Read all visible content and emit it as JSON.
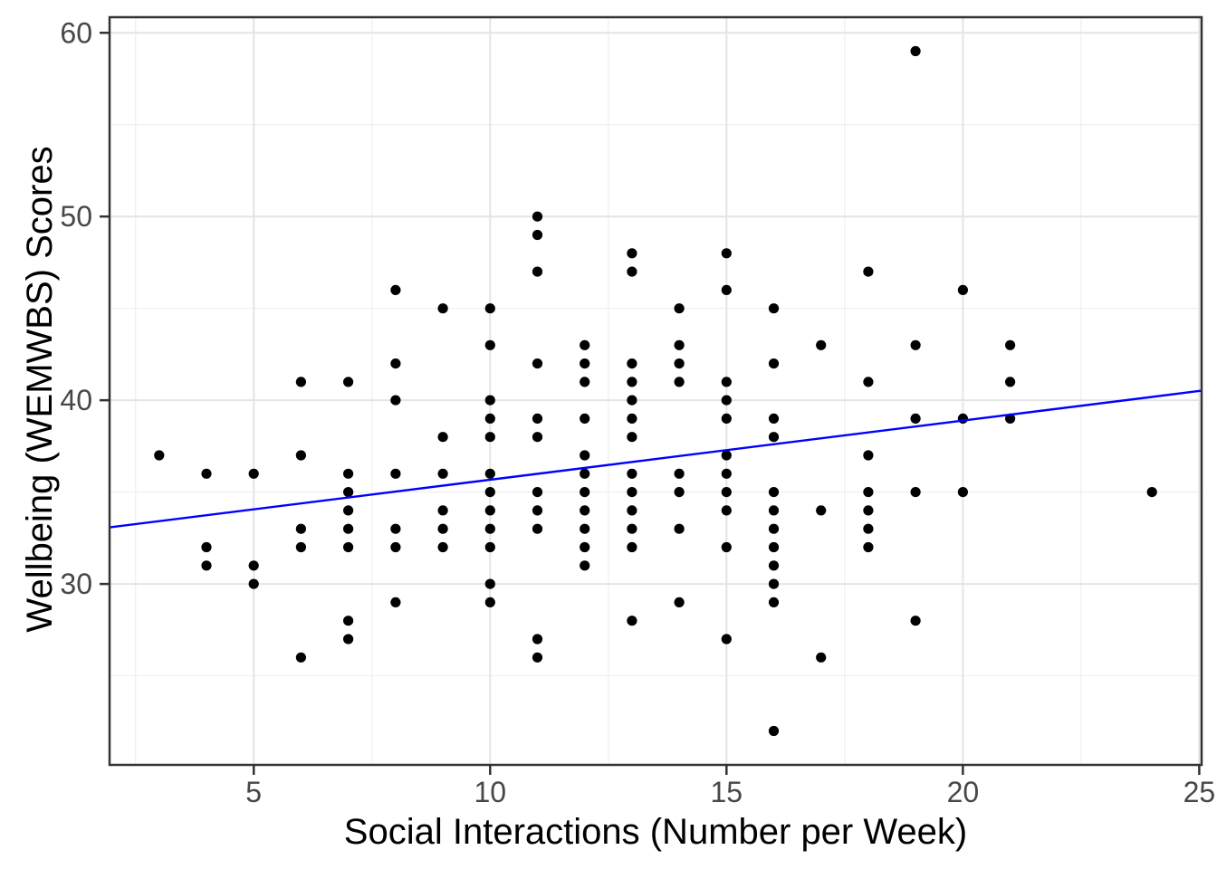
{
  "chart_data": {
    "type": "scatter",
    "title": "",
    "xlabel": "Social Interactions (Number per Week)",
    "ylabel": "Wellbeing (WEMWBS) Scores",
    "x_ticks": [
      5,
      10,
      15,
      20,
      25
    ],
    "y_ticks": [
      30,
      40,
      50,
      60
    ],
    "x_minor_ticks": [
      2.5,
      7.5,
      12.5,
      17.5,
      22.5
    ],
    "y_minor_ticks": [
      25,
      35,
      45,
      55
    ],
    "xlim": [
      1.95,
      25.05
    ],
    "ylim": [
      20.15,
      60.85
    ],
    "grid": true,
    "legend": "none",
    "points": [
      [
        3,
        37
      ],
      [
        4,
        36
      ],
      [
        4,
        32
      ],
      [
        4,
        31
      ],
      [
        5,
        36
      ],
      [
        5,
        31
      ],
      [
        5,
        30
      ],
      [
        6,
        41
      ],
      [
        6,
        37
      ],
      [
        6,
        33
      ],
      [
        6,
        32
      ],
      [
        6,
        26
      ],
      [
        7,
        41
      ],
      [
        7,
        36
      ],
      [
        7,
        35
      ],
      [
        7,
        34
      ],
      [
        7,
        33
      ],
      [
        7,
        32
      ],
      [
        7,
        28
      ],
      [
        7,
        27
      ],
      [
        8,
        46
      ],
      [
        8,
        42
      ],
      [
        8,
        40
      ],
      [
        8,
        36
      ],
      [
        8,
        33
      ],
      [
        8,
        32
      ],
      [
        8,
        29
      ],
      [
        9,
        45
      ],
      [
        9,
        38
      ],
      [
        9,
        36
      ],
      [
        9,
        34
      ],
      [
        9,
        33
      ],
      [
        9,
        32
      ],
      [
        10,
        45
      ],
      [
        10,
        43
      ],
      [
        10,
        40
      ],
      [
        10,
        39
      ],
      [
        10,
        38
      ],
      [
        10,
        36
      ],
      [
        10,
        35
      ],
      [
        10,
        34
      ],
      [
        10,
        33
      ],
      [
        10,
        32
      ],
      [
        10,
        30
      ],
      [
        10,
        29
      ],
      [
        11,
        50
      ],
      [
        11,
        49
      ],
      [
        11,
        47
      ],
      [
        11,
        42
      ],
      [
        11,
        39
      ],
      [
        11,
        38
      ],
      [
        11,
        35
      ],
      [
        11,
        34
      ],
      [
        11,
        33
      ],
      [
        11,
        27
      ],
      [
        11,
        26
      ],
      [
        12,
        43
      ],
      [
        12,
        42
      ],
      [
        12,
        41
      ],
      [
        12,
        39
      ],
      [
        12,
        37
      ],
      [
        12,
        36
      ],
      [
        12,
        35
      ],
      [
        12,
        34
      ],
      [
        12,
        33
      ],
      [
        12,
        32
      ],
      [
        12,
        31
      ],
      [
        13,
        48
      ],
      [
        13,
        47
      ],
      [
        13,
        42
      ],
      [
        13,
        41
      ],
      [
        13,
        40
      ],
      [
        13,
        39
      ],
      [
        13,
        38
      ],
      [
        13,
        36
      ],
      [
        13,
        35
      ],
      [
        13,
        34
      ],
      [
        13,
        33
      ],
      [
        13,
        32
      ],
      [
        13,
        28
      ],
      [
        14,
        45
      ],
      [
        14,
        43
      ],
      [
        14,
        42
      ],
      [
        14,
        41
      ],
      [
        14,
        36
      ],
      [
        14,
        35
      ],
      [
        14,
        33
      ],
      [
        14,
        29
      ],
      [
        15,
        48
      ],
      [
        15,
        46
      ],
      [
        15,
        41
      ],
      [
        15,
        40
      ],
      [
        15,
        39
      ],
      [
        15,
        37
      ],
      [
        15,
        36
      ],
      [
        15,
        35
      ],
      [
        15,
        34
      ],
      [
        15,
        32
      ],
      [
        15,
        27
      ],
      [
        16,
        45
      ],
      [
        16,
        42
      ],
      [
        16,
        39
      ],
      [
        16,
        38
      ],
      [
        16,
        35
      ],
      [
        16,
        34
      ],
      [
        16,
        33
      ],
      [
        16,
        32
      ],
      [
        16,
        31
      ],
      [
        16,
        30
      ],
      [
        16,
        29
      ],
      [
        16,
        22
      ],
      [
        17,
        43
      ],
      [
        17,
        34
      ],
      [
        17,
        26
      ],
      [
        18,
        47
      ],
      [
        18,
        41
      ],
      [
        18,
        37
      ],
      [
        18,
        35
      ],
      [
        18,
        34
      ],
      [
        18,
        33
      ],
      [
        18,
        32
      ],
      [
        19,
        59
      ],
      [
        19,
        43
      ],
      [
        19,
        39
      ],
      [
        19,
        35
      ],
      [
        19,
        28
      ],
      [
        20,
        46
      ],
      [
        20,
        39
      ],
      [
        20,
        35
      ],
      [
        21,
        43
      ],
      [
        21,
        41
      ],
      [
        21,
        39
      ],
      [
        24,
        35
      ]
    ],
    "trendline": {
      "type": "linear",
      "x1": 1.95,
      "y1": 33.08,
      "x2": 25.05,
      "y2": 40.52
    },
    "colors": {
      "point": "#000000",
      "trend_line": "#0000FF",
      "grid_major": "#E4E4E4",
      "grid_minor": "#EFEFEF",
      "panel_border": "#333333",
      "tick_mark": "#333333",
      "tick_text": "#474747",
      "axis_title": "#000000",
      "background": "#FFFFFF"
    }
  }
}
